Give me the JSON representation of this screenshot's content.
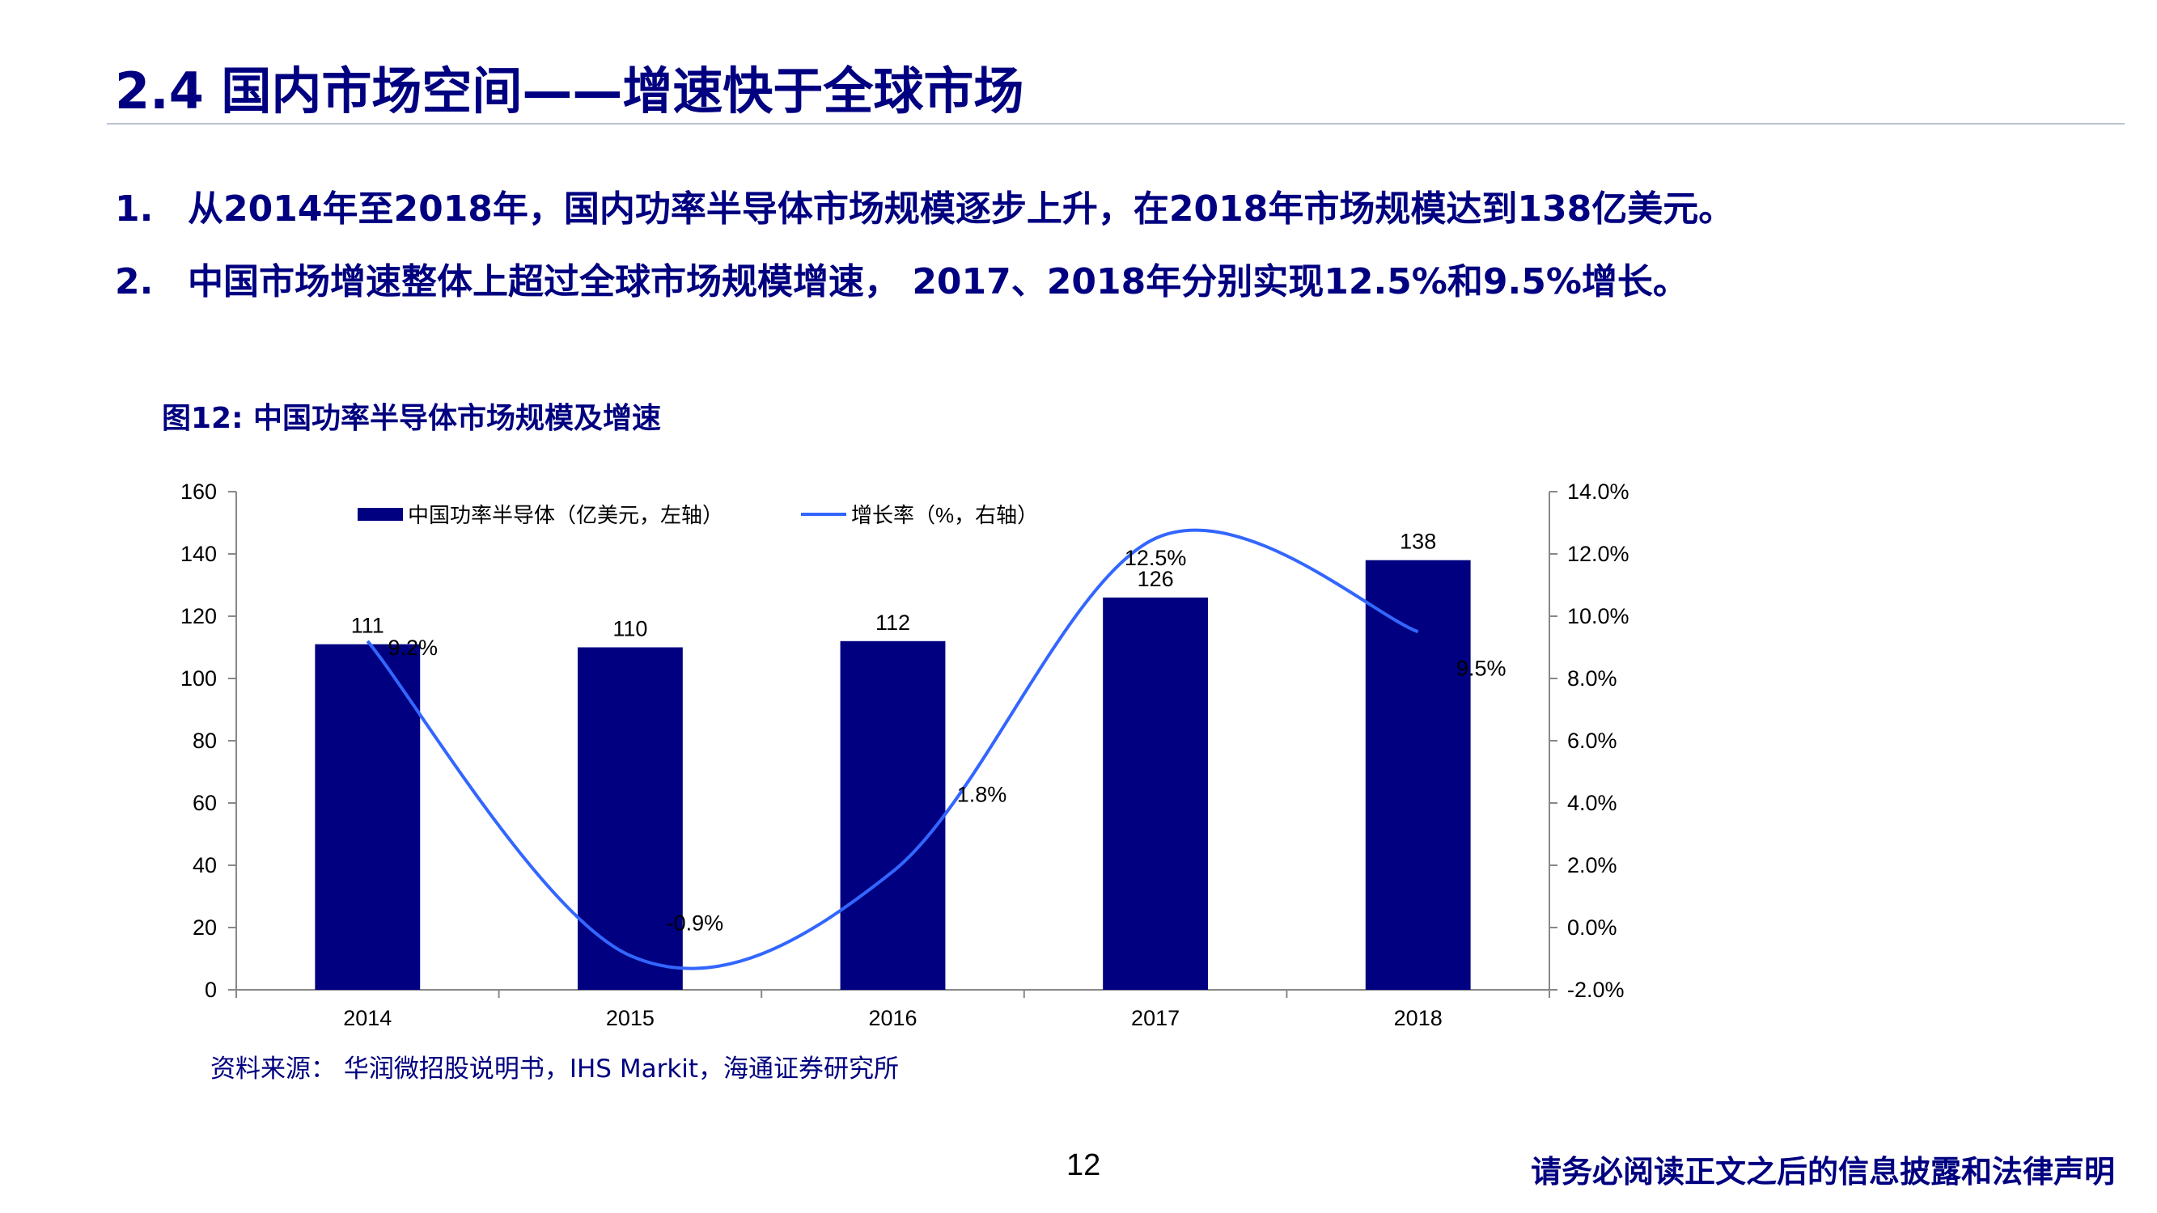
{
  "header": {
    "title": "2.4 国内市场空间——增速快于全球市场"
  },
  "bullets": [
    {
      "num": "1.",
      "text": "从2014年至2018年，国内功率半导体市场规模逐步上升，在2018年市场规模达到138亿美元。"
    },
    {
      "num": "2.",
      "text": "中国市场增速整体上超过全球市场规模增速， 2017、2018年分别实现12.5%和9.5%增长。"
    }
  ],
  "figure": {
    "caption": "图12:  中国功率半导体市场规模及增速",
    "source": "资料来源：  华润微招股说明书，IHS Markit，海通证券研究所"
  },
  "chart_data": {
    "type": "bar",
    "categories": [
      "2014",
      "2015",
      "2016",
      "2017",
      "2018"
    ],
    "series": [
      {
        "name": "中国功率半导体（亿美元，左轴）",
        "type": "bar",
        "axis": "left",
        "values": [
          111,
          110,
          112,
          126,
          138
        ],
        "labels": [
          "111",
          "110",
          "112",
          "126",
          "138"
        ],
        "color": "#000080"
      },
      {
        "name": "增长率（%，右轴）",
        "type": "line",
        "axis": "right",
        "values": [
          9.2,
          -0.9,
          1.8,
          12.5,
          9.5
        ],
        "labels": [
          "9.2%",
          "-0.9%",
          "1.8%",
          "12.5%",
          "9.5%"
        ],
        "color": "#3366ff"
      }
    ],
    "left_axis": {
      "min": 0,
      "max": 160,
      "step": 20,
      "ticks": [
        "0",
        "20",
        "40",
        "60",
        "80",
        "100",
        "120",
        "140",
        "160"
      ]
    },
    "right_axis": {
      "min": -2,
      "max": 14,
      "step": 2,
      "ticks": [
        "-2.0%",
        "0.0%",
        "2.0%",
        "4.0%",
        "6.0%",
        "8.0%",
        "10.0%",
        "12.0%",
        "14.0%"
      ]
    },
    "legend_position": "top",
    "grid": false
  },
  "footer": {
    "page_number": "12",
    "disclaimer": "请务必阅读正文之后的信息披露和法律声明"
  }
}
